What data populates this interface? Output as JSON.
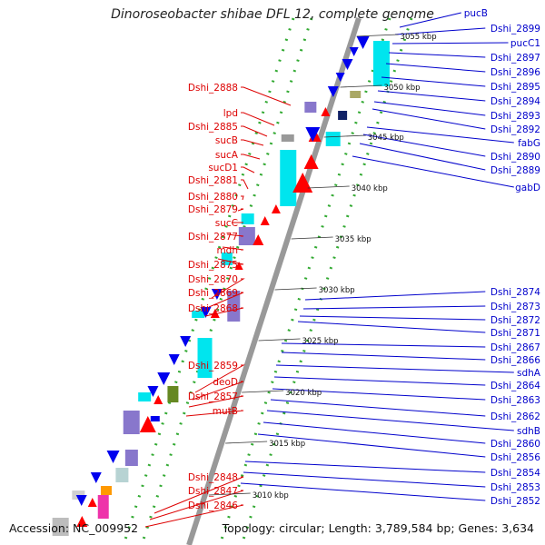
{
  "title": "Dinoroseobacter shibae DFL 12, complete genome",
  "accession_text": "Accession: NC_009952",
  "topology_text": "Topology: circular; Length: 3,789,584 bp; Genes: 3,634",
  "colors": {
    "reverse_label": "#dd0000",
    "forward_label": "#0000cc",
    "reverse_arrow": "#ff0000",
    "forward_arrow": "#0000ee",
    "cds_cyan": "#00e5ee",
    "cds_purple": "#8877cc",
    "backbone": "#999999",
    "dotted_track": "#33aa33"
  },
  "kbp_markers": [
    "3055 kbp",
    "3050 kbp",
    "3045 kbp",
    "3040 kbp",
    "3035 kbp",
    "3030 kbp",
    "3025 kbp",
    "3020 kbp",
    "3015 kbp",
    "3010 kbp"
  ],
  "left_labels": [
    "Dshi_2888",
    "lpd",
    "Dshi_2885",
    "sucB",
    "sucA",
    "sucD1",
    "Dshi_2881",
    "Dshi_2880",
    "Dshi_2879",
    "sucC",
    "Dshi_2877",
    "mdh",
    "Dshi_2875",
    "Dshi_2870",
    "Dshi_2869",
    "Dshi_2868",
    "Dshi_2859",
    "deoD",
    "Dshi_2857",
    "mutB",
    "Dshi_2848",
    "Dshi_2847",
    "Dshi_2846"
  ],
  "right_labels": [
    "pucB",
    "Dshi_2899",
    "pucC1",
    "Dshi_2897",
    "Dshi_2896",
    "Dshi_2895",
    "Dshi_2894",
    "Dshi_2893",
    "Dshi_2892",
    "fabG",
    "Dshi_2890",
    "Dshi_2889",
    "gabD",
    "Dshi_2874",
    "Dshi_2873",
    "Dshi_2872",
    "Dshi_2871",
    "Dshi_2867",
    "Dshi_2866",
    "sdhA",
    "Dshi_2864",
    "Dshi_2863",
    "Dshi_2862",
    "sdhB",
    "Dshi_2860",
    "Dshi_2856",
    "Dshi_2854",
    "Dshi_2853",
    "Dshi_2852"
  ]
}
